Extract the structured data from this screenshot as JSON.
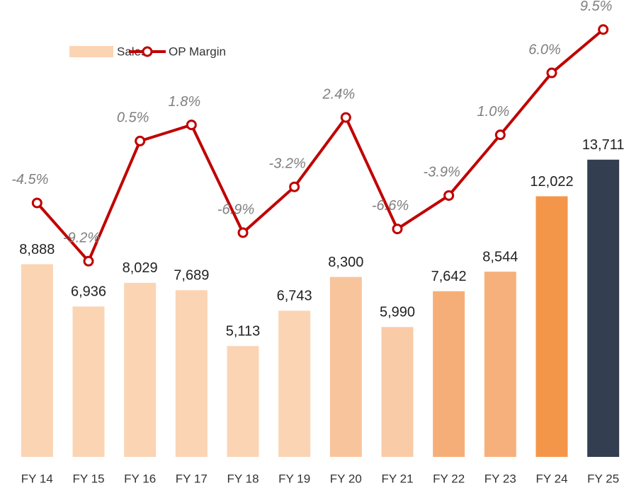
{
  "chart_data": {
    "type": "bar-line",
    "categories": [
      "FY 14",
      "FY 15",
      "FY 16",
      "FY 17",
      "FY 18",
      "FY 19",
      "FY 20",
      "FY 21",
      "FY 22",
      "FY 23",
      "FY 24",
      "FY 25"
    ],
    "series": [
      {
        "name": "Sales",
        "type": "bar",
        "color": "#fbd4b4",
        "colors": [
          "#fbd4b4",
          "#fbd4b4",
          "#fbd4b4",
          "#fbd4b4",
          "#fbd4b4",
          "#fbd4b4",
          "#f8c49c",
          "#f9cba7",
          "#f6ae78",
          "#f6b07c",
          "#f4964a",
          "#333f50"
        ],
        "values": [
          8888,
          6936,
          8029,
          7689,
          5113,
          6743,
          8300,
          5990,
          7642,
          8544,
          12022,
          13711
        ],
        "value_labels": [
          "8,888",
          "6,936",
          "8,029",
          "7,689",
          "5,113",
          "6,743",
          "8,300",
          "5,990",
          "7,642",
          "8,544",
          "12,022",
          "13,711"
        ]
      },
      {
        "name": "OP Margin",
        "type": "line",
        "axis": "y2",
        "color": "#c00000",
        "values": [
          -4.5,
          -9.2,
          0.5,
          1.8,
          -6.9,
          -3.2,
          2.4,
          -6.6,
          -3.9,
          1.0,
          6.0,
          9.5
        ],
        "value_labels": [
          "-4.5%",
          "-9.2%",
          "0.5%",
          "1.8%",
          "-6.9%",
          "-3.2%",
          "2.4%",
          "-6.6%",
          "-3.9%",
          "1.0%",
          "6.0%",
          "9.5%"
        ]
      }
    ],
    "ylim": [
      0,
      20000
    ],
    "y2lim": [
      -25,
      10
    ],
    "grid": false,
    "legend": "top-left"
  }
}
